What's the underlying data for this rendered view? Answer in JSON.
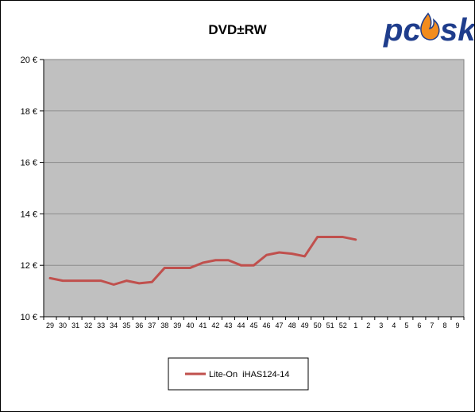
{
  "chart_data": {
    "type": "line",
    "title": "DVD±RW",
    "xlabel": "",
    "ylabel": "",
    "x": [
      "29",
      "30",
      "31",
      "32",
      "33",
      "34",
      "35",
      "36",
      "37",
      "38",
      "39",
      "40",
      "41",
      "42",
      "43",
      "44",
      "45",
      "46",
      "47",
      "48",
      "49",
      "50",
      "51",
      "52",
      "1",
      "2",
      "3",
      "4",
      "5",
      "6",
      "7",
      "8",
      "9"
    ],
    "ylim": [
      10,
      20
    ],
    "yticks": [
      10,
      12,
      14,
      16,
      18,
      20
    ],
    "ytick_labels": [
      "10 €",
      "12 €",
      "14 €",
      "16 €",
      "18 €",
      "20 €"
    ],
    "grid": true,
    "legend_position": "bottom",
    "series": [
      {
        "name": "Lite-On  iHAS124-14",
        "color": "#c0504d",
        "values": [
          11.5,
          11.4,
          11.4,
          11.4,
          11.4,
          11.25,
          11.4,
          11.3,
          11.35,
          11.9,
          11.9,
          11.9,
          12.1,
          12.2,
          12.2,
          12.0,
          12.0,
          12.4,
          12.5,
          12.45,
          12.35,
          13.1,
          13.1,
          13.1,
          13.0,
          null,
          null,
          null,
          null,
          null,
          null,
          null,
          null
        ]
      }
    ]
  },
  "logo": {
    "text": "pcosk",
    "primary_color": "#1f3d8c",
    "flame_color": "#f28c1e"
  },
  "colors": {
    "plot_background": "#c0c0c0",
    "grid": "#8c8c8c"
  }
}
